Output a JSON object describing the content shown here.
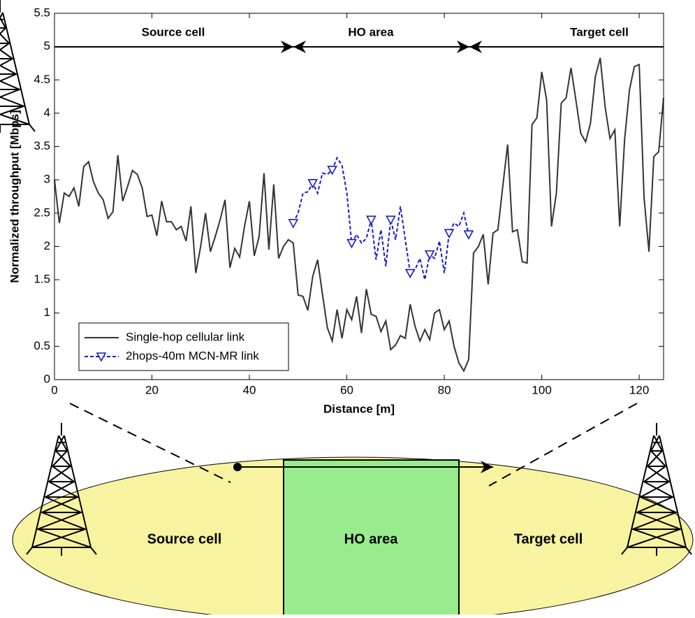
{
  "chart_data": {
    "type": "line",
    "xlabel": "Distance [m]",
    "ylabel": "Normalized throughput [Mbps]",
    "xlim": [
      0,
      125
    ],
    "ylim": [
      0,
      5.5
    ],
    "xticks": [
      0,
      20,
      40,
      60,
      80,
      100,
      120
    ],
    "yticks": [
      0,
      0.5,
      1,
      1.5,
      2,
      2.5,
      3,
      3.5,
      4,
      4.5,
      5,
      5.5
    ],
    "annotations": [
      "Source cell",
      "HO area",
      "Target cell"
    ],
    "legend": "lower left",
    "series": [
      {
        "name": "Single-hop cellular link",
        "color": "#333333",
        "x": [
          0,
          1,
          2,
          3,
          4,
          5,
          6,
          7,
          8,
          9,
          10,
          11,
          12,
          13,
          14,
          15,
          16,
          17,
          18,
          19,
          20,
          21,
          22,
          23,
          24,
          25,
          26,
          27,
          28,
          29,
          30,
          31,
          32,
          33,
          34,
          35,
          36,
          37,
          38,
          39,
          40,
          41,
          42,
          43,
          44,
          45,
          46,
          47,
          48,
          49,
          50,
          51,
          52,
          53,
          54,
          55,
          56,
          57,
          58,
          59,
          60,
          61,
          62,
          63,
          64,
          65,
          66,
          67,
          68,
          69,
          70,
          71,
          72,
          73,
          74,
          75,
          76,
          77,
          78,
          79,
          80,
          81,
          82,
          83,
          84,
          85,
          86,
          87,
          88,
          89,
          90,
          91,
          92,
          93,
          94,
          95,
          96,
          97,
          98,
          99,
          100,
          101,
          102,
          103,
          104,
          105,
          106,
          107,
          108,
          109,
          110,
          111,
          112,
          113,
          114,
          115,
          116,
          117,
          118,
          119,
          120,
          121,
          122,
          123,
          124,
          125
        ],
        "values": [
          3.0,
          2.35,
          2.8,
          2.75,
          2.88,
          2.6,
          3.2,
          3.27,
          2.97,
          2.8,
          2.7,
          2.42,
          2.52,
          3.37,
          2.68,
          2.9,
          3.14,
          3.08,
          2.88,
          2.45,
          2.47,
          2.16,
          2.68,
          2.37,
          2.37,
          2.25,
          2.3,
          2.08,
          2.6,
          1.6,
          2.0,
          2.5,
          1.92,
          2.15,
          2.4,
          2.7,
          1.68,
          1.97,
          1.84,
          2.3,
          2.68,
          1.86,
          2.15,
          3.1,
          1.95,
          2.93,
          1.82,
          2.0,
          2.1,
          2.05,
          1.27,
          1.25,
          1.04,
          1.55,
          1.8,
          1.28,
          0.78,
          0.58,
          1.05,
          0.62,
          1.05,
          0.9,
          1.25,
          0.7,
          1.36,
          0.98,
          0.95,
          0.72,
          0.88,
          0.45,
          0.52,
          0.66,
          0.62,
          1.13,
          0.8,
          0.58,
          0.75,
          0.6,
          1.0,
          1.05,
          0.75,
          0.88,
          0.5,
          0.25,
          0.13,
          0.3,
          1.9,
          2.0,
          2.18,
          1.43,
          2.2,
          2.25,
          2.9,
          3.53,
          2.22,
          2.25,
          1.77,
          1.75,
          3.83,
          3.93,
          4.62,
          4.2,
          2.3,
          2.8,
          4.15,
          4.23,
          4.68,
          4.2,
          3.7,
          3.57,
          3.85,
          4.55,
          4.83,
          4.1,
          3.62,
          3.75,
          2.3,
          3.6,
          4.35,
          4.7,
          4.73,
          2.73,
          1.92,
          3.35,
          3.42,
          4.23
        ]
      },
      {
        "name": "2hops-40m MCN-MR link",
        "color": "#1a1acc",
        "x": [
          49,
          50,
          51,
          52,
          53,
          54,
          55,
          56,
          57,
          58,
          59,
          60,
          61,
          62,
          63,
          64,
          65,
          66,
          67,
          68,
          69,
          70,
          71,
          72,
          73,
          74,
          75,
          76,
          77,
          78,
          79,
          80,
          81,
          82,
          83,
          84,
          85
        ],
        "values": [
          2.35,
          2.5,
          2.8,
          2.82,
          2.95,
          2.8,
          3.1,
          3.08,
          3.15,
          3.33,
          3.22,
          2.8,
          2.05,
          2.18,
          2.05,
          2.12,
          2.4,
          1.8,
          2.25,
          1.7,
          2.4,
          2.1,
          2.6,
          2.1,
          1.6,
          1.65,
          1.82,
          1.5,
          1.88,
          1.82,
          2.08,
          1.6,
          2.2,
          2.35,
          2.3,
          2.5,
          2.18
        ]
      }
    ]
  },
  "diagram": {
    "labels": [
      "Source cell",
      "HO area",
      "Target cell"
    ]
  }
}
